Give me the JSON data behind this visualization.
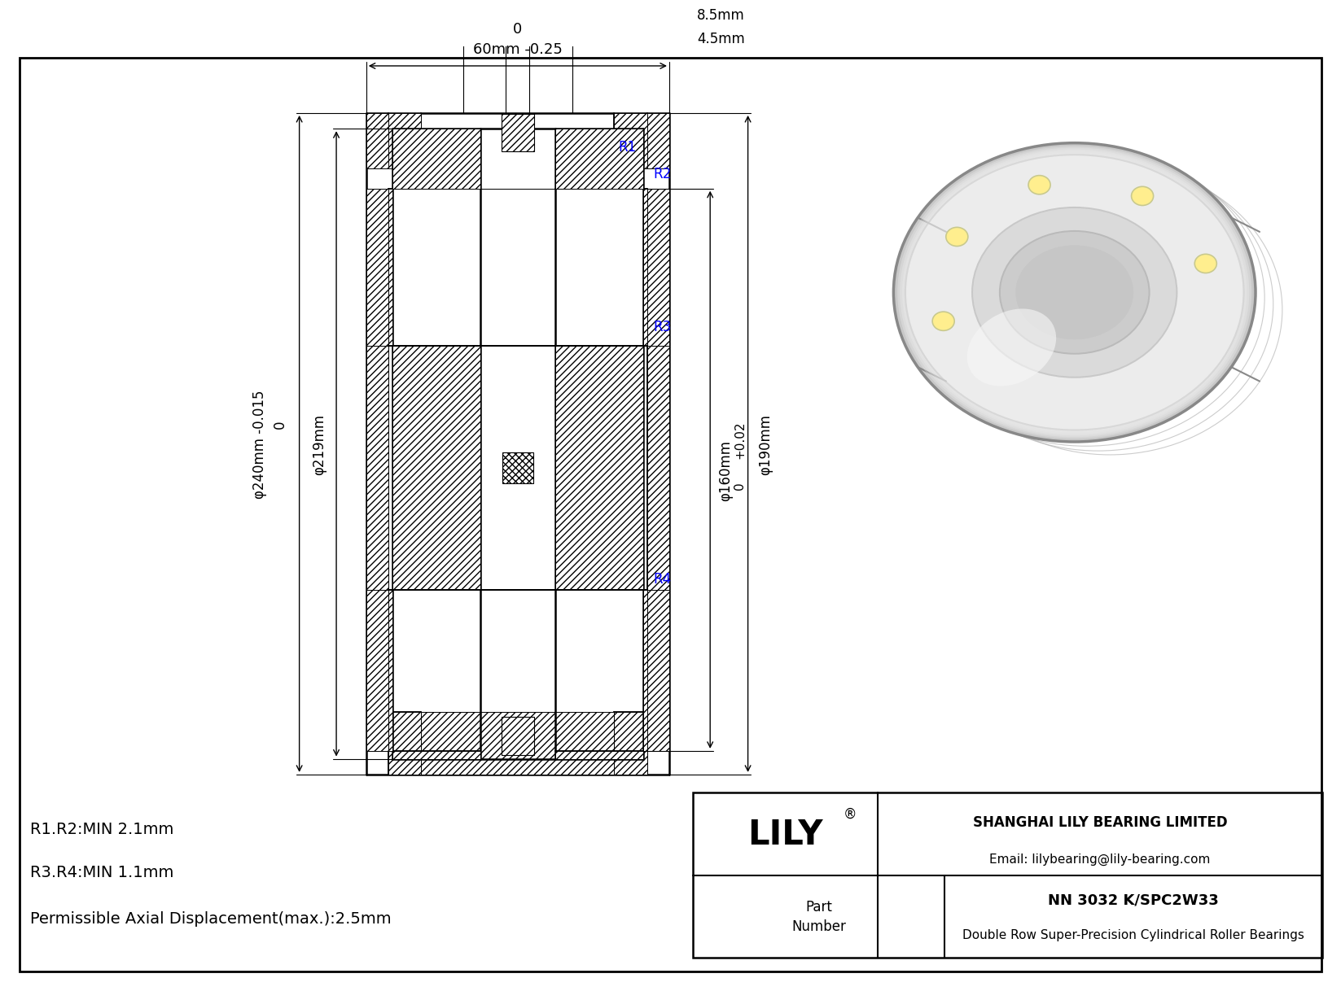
{
  "bg_color": "#ffffff",
  "title_box": {
    "company": "SHANGHAI LILY BEARING LIMITED",
    "email": "Email: lilybearing@lily-bearing.com",
    "part_label": "Part\nNumber",
    "part_number": "NN 3032 K/SPC2W33",
    "description": "Double Row Super-Precision Cylindrical Roller Bearings"
  },
  "footer_text": {
    "line1": "R1.R2:MIN 2.1mm",
    "line2": "R3.R4:MIN 1.1mm",
    "line3": "Permissible Axial Displacement(max.):2.5mm"
  },
  "dims": {
    "top_0": "0",
    "top_val": "60mm -0.25",
    "right1": "8.5mm",
    "right2": "4.5mm",
    "left1_0": "0",
    "left1_val": "φ240mm -0.015",
    "left2": "φ219mm",
    "bore_tol": "+0.02",
    "bore_0": "0",
    "bore_val": "φ160mm",
    "od_val": "φ190mm"
  },
  "labels": {
    "R1": "R1",
    "R2": "R2",
    "R3": "R3",
    "R4": "R4"
  }
}
